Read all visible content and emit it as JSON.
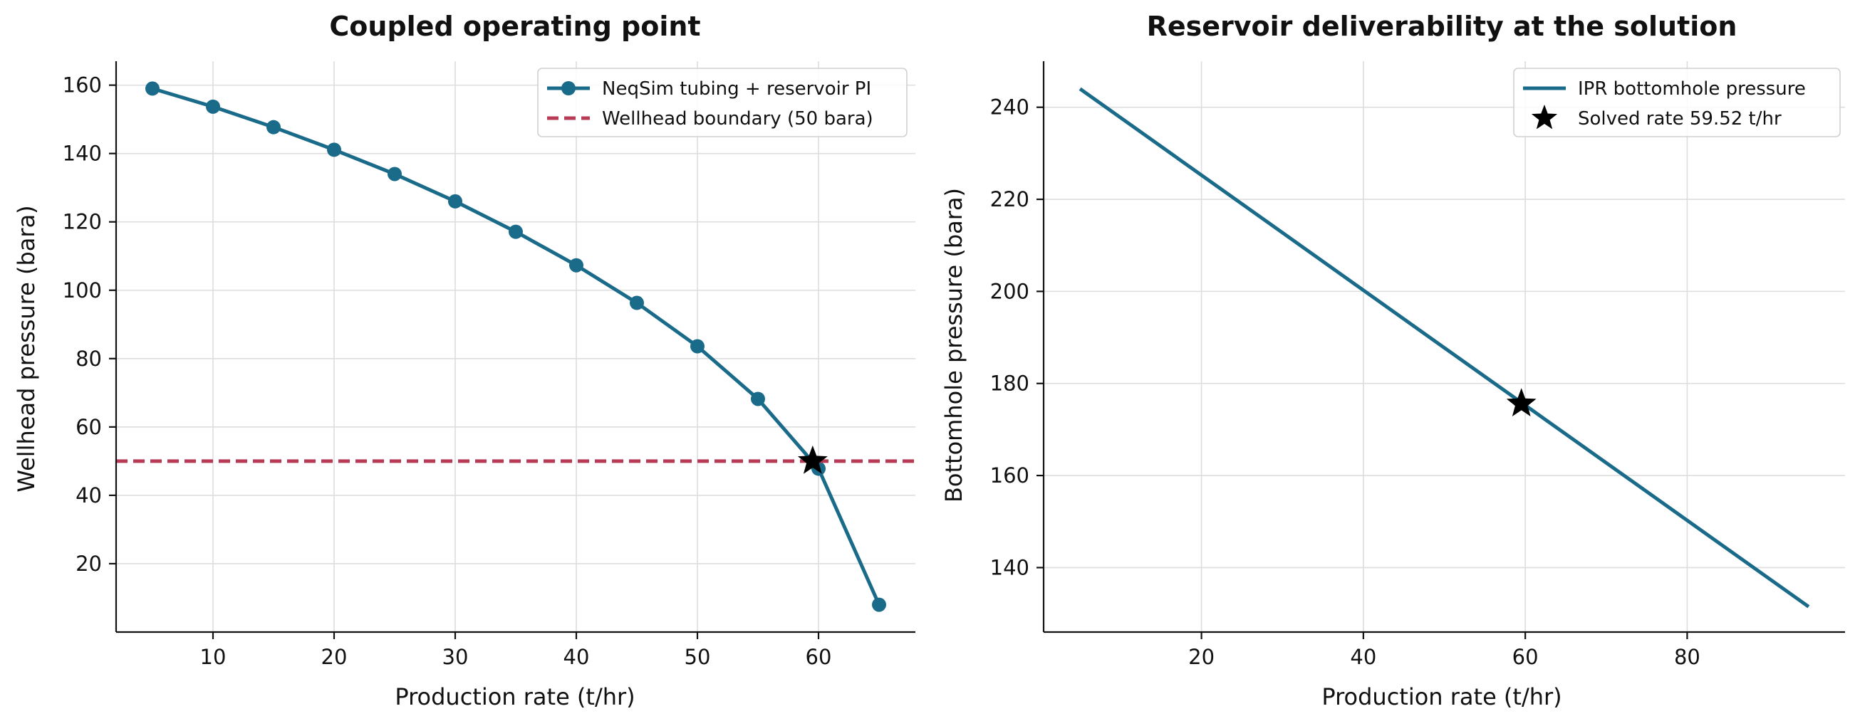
{
  "chart_data": [
    {
      "type": "line",
      "title": "Coupled operating point",
      "xlabel": "Production rate (t/hr)",
      "ylabel": "Wellhead pressure (bara)",
      "xlim": [
        2,
        68
      ],
      "ylim": [
        0,
        167
      ],
      "xticks": [
        10,
        20,
        30,
        40,
        50,
        60
      ],
      "yticks": [
        20,
        40,
        60,
        80,
        100,
        120,
        140,
        160
      ],
      "grid": true,
      "legend_position": "top-right",
      "series": [
        {
          "name": "NeqSim tubing + reservoir PI",
          "color": "#1a6b8a",
          "style": "line-markers",
          "x": [
            5,
            10,
            15,
            20,
            25,
            30,
            35,
            40,
            45,
            50,
            55,
            60,
            65
          ],
          "y": [
            159,
            153.7,
            147.7,
            141.1,
            134,
            126,
            117.1,
            107.3,
            96.3,
            83.6,
            68.2,
            47.8,
            8
          ]
        },
        {
          "name": "Wellhead boundary (50 bara)",
          "color": "#b83b55",
          "style": "dashed-hline",
          "y": 50
        }
      ],
      "solution_marker": {
        "x": 59.52,
        "y": 50,
        "shape": "star",
        "color": "#000000"
      }
    },
    {
      "type": "line",
      "title": "Reservoir deliverability at the solution",
      "xlabel": "Production rate (t/hr)",
      "ylabel": "Bottomhole pressure (bara)",
      "xlim": [
        0.5,
        99.5
      ],
      "ylim": [
        126,
        250
      ],
      "xticks": [
        20,
        40,
        60,
        80
      ],
      "yticks": [
        140,
        160,
        180,
        200,
        220,
        240
      ],
      "grid": true,
      "legend_position": "top-right",
      "series": [
        {
          "name": "IPR bottomhole pressure",
          "color": "#1a6b8a",
          "style": "line",
          "x": [
            5,
            95
          ],
          "y": [
            244,
            131.5
          ]
        },
        {
          "name": "Solved rate 59.52 t/hr",
          "color": "#000000",
          "style": "star-marker",
          "x": [
            59.52
          ],
          "y": [
            175.6
          ]
        }
      ]
    }
  ]
}
